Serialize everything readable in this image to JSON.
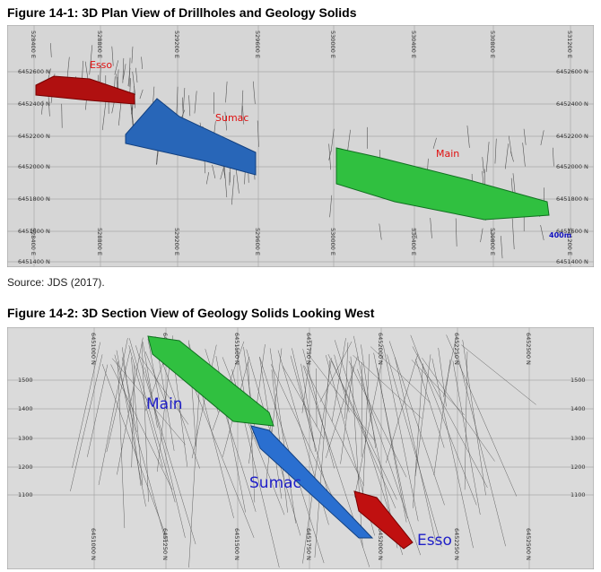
{
  "figures": [
    {
      "caption": "Figure 14-1: 3D Plan View of Drillholes and Geology Solids",
      "eastings": [
        "528400 E",
        "528800 E",
        "529200 E",
        "529600 E",
        "530000 E",
        "530400 E",
        "530800 E",
        "531200 E"
      ],
      "northings": [
        "6452600 N",
        "6452400 N",
        "6452200 N",
        "6452000 N",
        "6451800 N",
        "6451600 N",
        "6451400 N"
      ],
      "labels": [
        "Esso",
        "Sumac",
        "Main"
      ],
      "scale": "400m"
    },
    {
      "caption": "Figure 14-2: 3D Section View of Geology Solids Looking West",
      "northings": [
        "6451000 N",
        "6451250 N",
        "6451500 N",
        "6451750 N",
        "6452000 N",
        "6452250 N",
        "6452500 N"
      ],
      "elevations": [
        "1500",
        "1400",
        "1300",
        "1200",
        "1100"
      ],
      "labels": [
        "Main",
        "Sumac",
        "Esso"
      ]
    }
  ],
  "source": "Source: JDS (2017)."
}
